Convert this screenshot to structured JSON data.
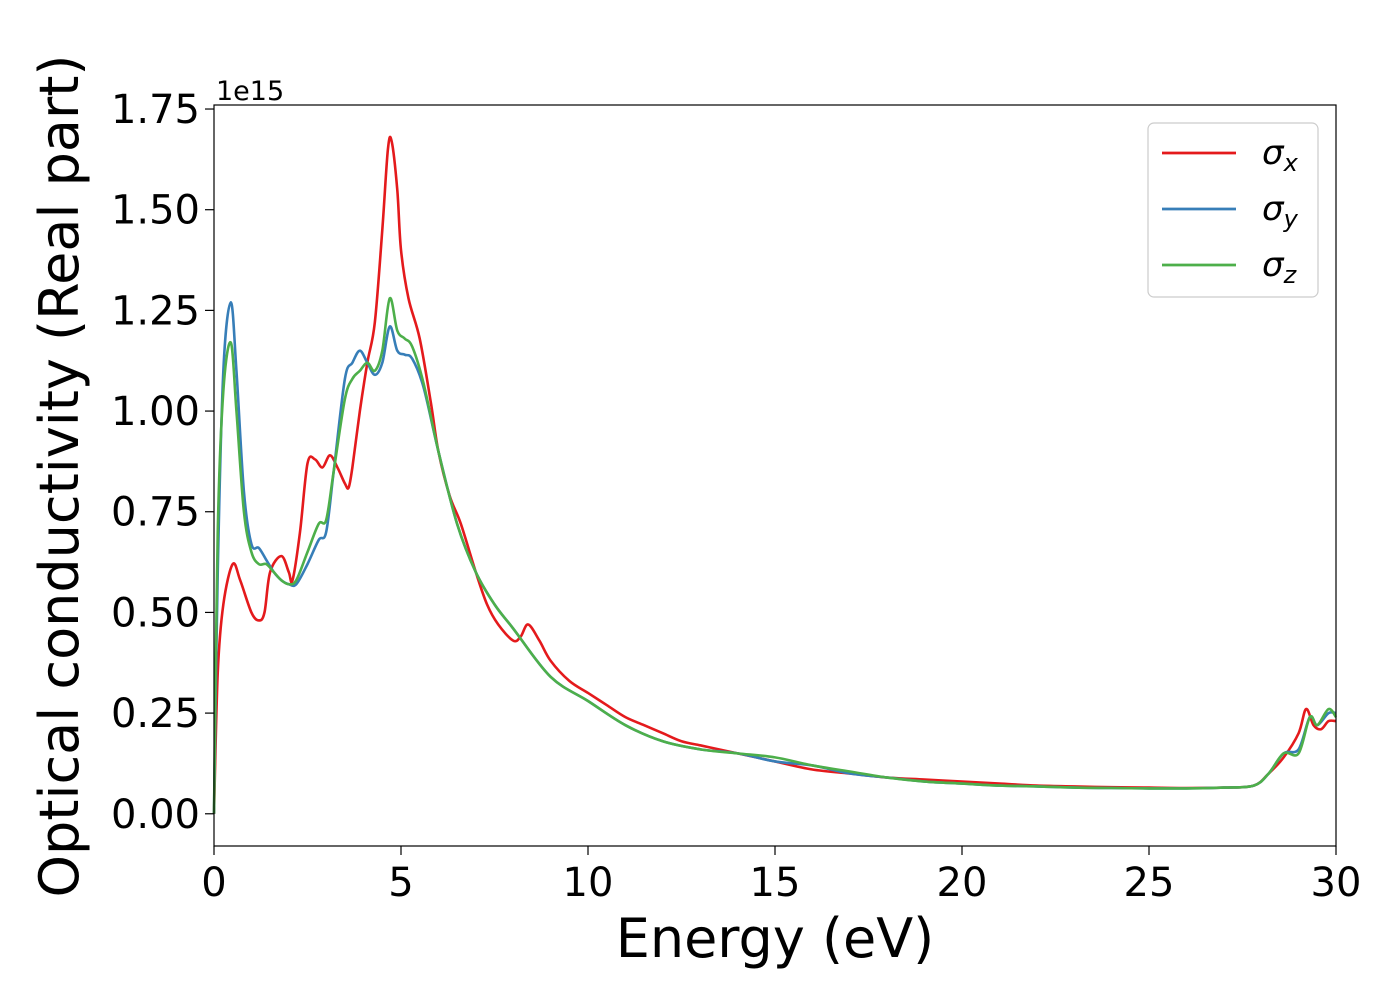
{
  "chart_data": {
    "type": "line",
    "title": "",
    "xlabel": "Energy (eV)",
    "ylabel": "Optical conductivity (Real part)",
    "y_offset_label": "1e15",
    "xlim": [
      0,
      30
    ],
    "ylim": [
      -0.08,
      1.76
    ],
    "x_ticks": [
      0,
      5,
      10,
      15,
      20,
      25,
      30
    ],
    "x_tick_labels": [
      "0",
      "5",
      "10",
      "15",
      "20",
      "25",
      "30"
    ],
    "y_ticks": [
      0.0,
      0.25,
      0.5,
      0.75,
      1.0,
      1.25,
      1.5,
      1.75
    ],
    "y_tick_labels": [
      "0.00",
      "0.25",
      "0.50",
      "0.75",
      "1.00",
      "1.25",
      "1.50",
      "1.75"
    ],
    "grid": false,
    "legend_position": "top-right",
    "series": [
      {
        "name": "σ",
        "sub": "x",
        "color": "#e41a1c",
        "x": [
          0,
          0.1,
          0.25,
          0.5,
          0.7,
          1.0,
          1.2,
          1.35,
          1.5,
          1.8,
          2.0,
          2.1,
          2.3,
          2.5,
          2.7,
          2.9,
          3.1,
          3.3,
          3.5,
          3.6,
          3.7,
          3.9,
          4.1,
          4.3,
          4.5,
          4.65,
          4.75,
          4.9,
          5.0,
          5.2,
          5.5,
          5.8,
          6.0,
          6.3,
          6.6,
          7.0,
          7.3,
          7.6,
          8.0,
          8.2,
          8.4,
          8.7,
          9.0,
          9.5,
          10.0,
          10.5,
          11.0,
          11.5,
          12.0,
          12.5,
          13.0,
          13.5,
          14.0,
          14.5,
          15.0,
          16.0,
          17.0,
          18.0,
          19.0,
          20.0,
          21.0,
          22.0,
          23.0,
          24.0,
          25.0,
          26.0,
          27.0,
          27.8,
          28.2,
          28.6,
          29.0,
          29.2,
          29.4,
          29.6,
          29.8,
          30.0
        ],
        "y": [
          0.0,
          0.35,
          0.52,
          0.62,
          0.58,
          0.5,
          0.48,
          0.5,
          0.6,
          0.64,
          0.6,
          0.58,
          0.7,
          0.87,
          0.88,
          0.86,
          0.89,
          0.86,
          0.82,
          0.81,
          0.86,
          1.0,
          1.12,
          1.22,
          1.45,
          1.65,
          1.67,
          1.55,
          1.4,
          1.28,
          1.18,
          1.02,
          0.9,
          0.79,
          0.72,
          0.6,
          0.52,
          0.47,
          0.43,
          0.44,
          0.47,
          0.43,
          0.38,
          0.33,
          0.3,
          0.27,
          0.24,
          0.22,
          0.2,
          0.18,
          0.17,
          0.16,
          0.15,
          0.14,
          0.13,
          0.11,
          0.1,
          0.09,
          0.085,
          0.08,
          0.075,
          0.07,
          0.068,
          0.066,
          0.065,
          0.064,
          0.065,
          0.07,
          0.1,
          0.14,
          0.2,
          0.26,
          0.22,
          0.21,
          0.23,
          0.23
        ]
      },
      {
        "name": "σ",
        "sub": "y",
        "color": "#377eb8",
        "x": [
          0,
          0.1,
          0.25,
          0.45,
          0.6,
          0.8,
          1.0,
          1.2,
          1.4,
          1.6,
          1.8,
          2.0,
          2.2,
          2.5,
          2.8,
          3.0,
          3.2,
          3.5,
          3.7,
          3.9,
          4.1,
          4.3,
          4.5,
          4.7,
          4.9,
          5.1,
          5.3,
          5.6,
          6.0,
          6.5,
          7.0,
          7.5,
          8.0,
          9.0,
          10.0,
          11.0,
          12.0,
          13.0,
          14.0,
          15.0,
          16.0,
          17.0,
          18.0,
          19.0,
          20.0,
          21.0,
          22.0,
          23.0,
          24.0,
          25.0,
          26.0,
          27.0,
          27.8,
          28.2,
          28.6,
          29.0,
          29.3,
          29.5,
          29.8,
          30.0
        ],
        "y": [
          0.0,
          0.6,
          1.1,
          1.27,
          1.1,
          0.8,
          0.67,
          0.66,
          0.63,
          0.6,
          0.58,
          0.57,
          0.57,
          0.62,
          0.68,
          0.7,
          0.85,
          1.08,
          1.12,
          1.15,
          1.12,
          1.09,
          1.12,
          1.21,
          1.15,
          1.14,
          1.13,
          1.06,
          0.9,
          0.72,
          0.6,
          0.52,
          0.46,
          0.34,
          0.28,
          0.22,
          0.18,
          0.16,
          0.15,
          0.13,
          0.12,
          0.1,
          0.09,
          0.08,
          0.075,
          0.07,
          0.068,
          0.065,
          0.064,
          0.063,
          0.063,
          0.065,
          0.07,
          0.1,
          0.15,
          0.16,
          0.24,
          0.22,
          0.25,
          0.25
        ]
      },
      {
        "name": "σ",
        "sub": "z",
        "color": "#4daf4a",
        "x": [
          0,
          0.1,
          0.25,
          0.45,
          0.6,
          0.8,
          1.0,
          1.2,
          1.4,
          1.6,
          1.8,
          2.0,
          2.2,
          2.5,
          2.8,
          3.0,
          3.2,
          3.5,
          3.7,
          3.9,
          4.1,
          4.3,
          4.5,
          4.7,
          4.9,
          5.1,
          5.3,
          5.6,
          6.0,
          6.5,
          7.0,
          7.5,
          8.0,
          9.0,
          10.0,
          11.0,
          12.0,
          13.0,
          14.0,
          15.0,
          16.0,
          17.0,
          18.0,
          19.0,
          20.0,
          21.0,
          22.0,
          23.0,
          24.0,
          25.0,
          26.0,
          27.0,
          27.8,
          28.2,
          28.6,
          29.0,
          29.3,
          29.5,
          29.8,
          30.0
        ],
        "y": [
          0.0,
          0.7,
          1.05,
          1.17,
          1.0,
          0.75,
          0.65,
          0.62,
          0.62,
          0.6,
          0.58,
          0.57,
          0.58,
          0.65,
          0.72,
          0.73,
          0.85,
          1.03,
          1.08,
          1.1,
          1.12,
          1.1,
          1.15,
          1.28,
          1.2,
          1.18,
          1.16,
          1.07,
          0.9,
          0.72,
          0.6,
          0.52,
          0.46,
          0.34,
          0.28,
          0.22,
          0.18,
          0.16,
          0.15,
          0.14,
          0.12,
          0.105,
          0.09,
          0.08,
          0.075,
          0.07,
          0.068,
          0.065,
          0.064,
          0.063,
          0.063,
          0.065,
          0.07,
          0.1,
          0.15,
          0.15,
          0.24,
          0.22,
          0.26,
          0.24
        ]
      }
    ]
  }
}
